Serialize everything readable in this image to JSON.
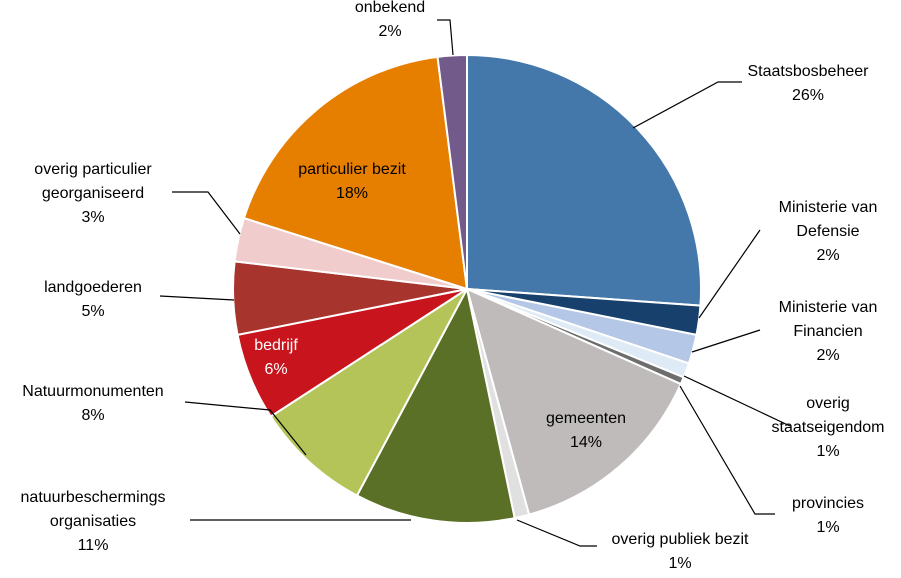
{
  "chart_data": {
    "type": "pie",
    "title": "",
    "slices": [
      {
        "label": [
          "Staatsbosbeheer"
        ],
        "pct_text": "26%",
        "value": 26,
        "color": "#4477AA"
      },
      {
        "label": [
          "Ministerie van",
          "Defensie"
        ],
        "pct_text": "2%",
        "value": 2,
        "color": "#17406D"
      },
      {
        "label": [
          "Ministerie van",
          "Financien"
        ],
        "pct_text": "2%",
        "value": 2,
        "color": "#B4C7E7"
      },
      {
        "label": [
          "overig",
          "staatseigendom"
        ],
        "pct_text": "1%",
        "value": 1,
        "color": "#DEEBF7"
      },
      {
        "label": [
          "provincies"
        ],
        "pct_text": "1%",
        "value": 0.5,
        "color": "#6D6D6D"
      },
      {
        "label": [
          "gemeenten"
        ],
        "pct_text": "14%",
        "value": 14,
        "color": "#BFBBBA"
      },
      {
        "label": [
          "overig publiek bezit"
        ],
        "pct_text": "1%",
        "value": 1,
        "color": "#E0E0E0"
      },
      {
        "label": [
          "natuurbeschermings",
          "organisaties"
        ],
        "pct_text": "11%",
        "value": 11,
        "color": "#5A7027"
      },
      {
        "label": [
          "Natuurmonumenten"
        ],
        "pct_text": "8%",
        "value": 8,
        "color": "#B4C458"
      },
      {
        "label": [
          "bedrijf"
        ],
        "pct_text": "6%",
        "value": 6,
        "color": "#C8141C"
      },
      {
        "label": [
          "landgoederen"
        ],
        "pct_text": "5%",
        "value": 5,
        "color": "#A8342E"
      },
      {
        "label": [
          "overig particulier",
          "georganiseerd"
        ],
        "pct_text": "3%",
        "value": 3,
        "color": "#F1CCCC"
      },
      {
        "label": [
          "particulier bezit"
        ],
        "pct_text": "18%",
        "value": 18,
        "color": "#E67E00"
      },
      {
        "label": [
          "onbekend"
        ],
        "pct_text": "2%",
        "value": 2,
        "color": "#725A8B"
      }
    ]
  }
}
